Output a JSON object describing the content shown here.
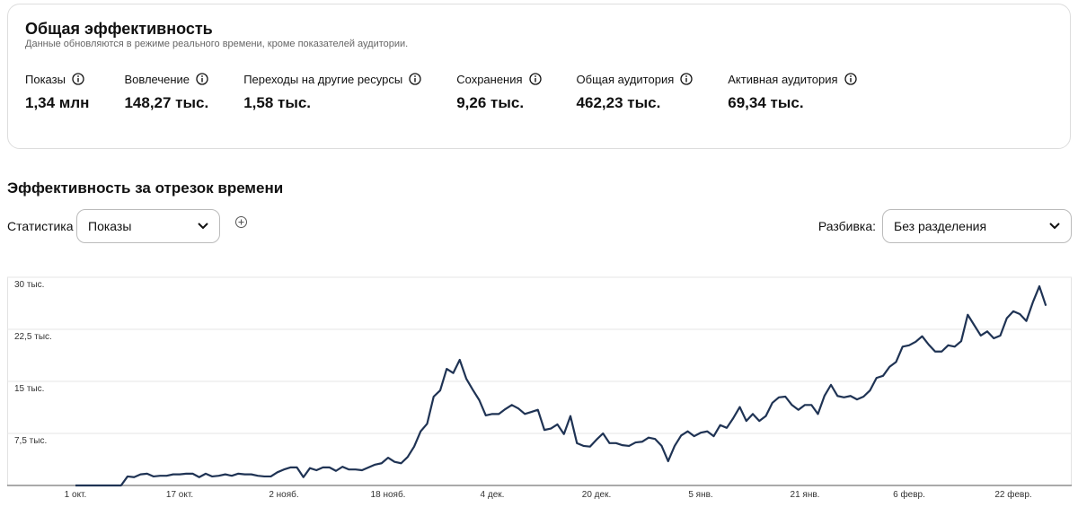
{
  "header": {
    "title": "Общая эффективность",
    "subtitle": "Данные обновляются в режиме реального времени, кроме показателей аудитории."
  },
  "metrics": [
    {
      "label": "Показы",
      "value": "1,34 млн"
    },
    {
      "label": "Вовлечение",
      "value": "148,27 тыс."
    },
    {
      "label": "Переходы на другие ресурсы",
      "value": "1,58 тыс."
    },
    {
      "label": "Сохранения",
      "value": "9,26 тыс."
    },
    {
      "label": "Общая аудитория",
      "value": "462,23 тыс."
    },
    {
      "label": "Активная аудитория",
      "value": "69,34 тыс."
    }
  ],
  "section": {
    "title": "Эффективность за отрезок времени",
    "metric_label": "Статистика",
    "metric_value": "Показы",
    "split_label": "Разбивка:",
    "split_value": "Без разделения"
  },
  "chart_data": {
    "type": "line",
    "color": "#1f3354",
    "grid": true,
    "categories": [
      "1 окт.",
      null,
      null,
      null,
      null,
      null,
      null,
      null,
      null,
      null,
      null,
      null,
      null,
      null,
      null,
      null,
      "17 окт.",
      null,
      null,
      null,
      null,
      null,
      null,
      null,
      null,
      null,
      null,
      null,
      null,
      null,
      null,
      null,
      "2 нояб.",
      null,
      null,
      null,
      null,
      null,
      null,
      null,
      null,
      null,
      null,
      null,
      null,
      null,
      null,
      null,
      "18 нояб.",
      null,
      null,
      null,
      null,
      null,
      null,
      null,
      null,
      null,
      null,
      null,
      null,
      null,
      null,
      null,
      "4 дек.",
      null,
      null,
      null,
      null,
      null,
      null,
      null,
      null,
      null,
      null,
      null,
      null,
      null,
      null,
      null,
      "20 дек.",
      null,
      null,
      null,
      null,
      null,
      null,
      null,
      null,
      null,
      null,
      null,
      null,
      null,
      null,
      null,
      "5 янв.",
      null,
      null,
      null,
      null,
      null,
      null,
      null,
      null,
      null,
      null,
      null,
      null,
      null,
      null,
      null,
      "21 янв.",
      null,
      null,
      null,
      null,
      null,
      null,
      null,
      null,
      null,
      null,
      null,
      null,
      null,
      null,
      null,
      "6 февр.",
      null,
      null,
      null,
      null,
      null,
      null,
      null,
      null,
      null,
      null,
      null,
      null,
      null,
      null,
      null,
      "22 февр.",
      null,
      null,
      null,
      null,
      null
    ],
    "values": [
      0,
      0,
      0,
      0,
      0,
      0,
      0,
      0,
      1300,
      1200,
      1600,
      1700,
      1300,
      1400,
      1400,
      1600,
      1600,
      1700,
      1700,
      1200,
      1700,
      1300,
      1400,
      1600,
      1400,
      1700,
      1600,
      1600,
      1400,
      1300,
      1300,
      1900,
      2300,
      2600,
      2600,
      1200,
      2500,
      2200,
      2600,
      2600,
      2100,
      2700,
      2300,
      2300,
      2200,
      2600,
      3000,
      3200,
      4000,
      3400,
      3200,
      4100,
      5600,
      7800,
      8900,
      12800,
      13700,
      16800,
      16200,
      18100,
      15400,
      13800,
      12300,
      10100,
      10300,
      10300,
      11000,
      11600,
      11100,
      10300,
      10600,
      10900,
      8000,
      8200,
      8800,
      7400,
      10000,
      6100,
      5700,
      5600,
      6600,
      7500,
      6100,
      6100,
      5800,
      5700,
      6200,
      6300,
      6900,
      6700,
      5700,
      3500,
      5700,
      7200,
      7800,
      7100,
      7600,
      7800,
      7100,
      8700,
      8300,
      9700,
      11300,
      9300,
      10300,
      9300,
      10000,
      11900,
      12700,
      12800,
      11600,
      10900,
      11600,
      11600,
      10300,
      12900,
      14500,
      12900,
      12700,
      12900,
      12400,
      12800,
      13700,
      15500,
      15800,
      17100,
      17800,
      20000,
      20200,
      20700,
      21500,
      20300,
      19300,
      19300,
      20200,
      20000,
      20800,
      24600,
      23100,
      21600,
      22200,
      21200,
      21600,
      24100,
      25100,
      24700,
      23700,
      26400,
      28700,
      25900
    ],
    "ylim": [
      0,
      30000
    ],
    "yticks": [
      {
        "value": 7500,
        "label": "7,5 тыс."
      },
      {
        "value": 15000,
        "label": "15 тыс."
      },
      {
        "value": 22500,
        "label": "22,5 тыс."
      },
      {
        "value": 30000,
        "label": "30 тыс."
      }
    ]
  }
}
